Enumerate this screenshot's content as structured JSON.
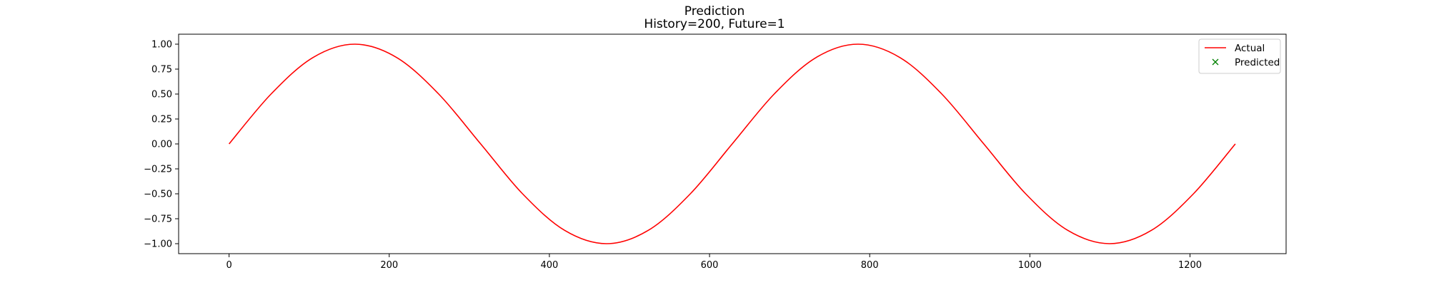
{
  "chart_data": {
    "type": "line",
    "title": "Prediction",
    "subtitle": "History=200, Future=1",
    "xlabel": "",
    "ylabel": "",
    "xlim": [
      -63,
      1320
    ],
    "ylim": [
      -1.1,
      1.1
    ],
    "xticks": [
      0,
      200,
      400,
      600,
      800,
      1000,
      1200
    ],
    "yticks": [
      1.0,
      0.75,
      0.5,
      0.25,
      0.0,
      -0.25,
      -0.5,
      -0.75,
      -1.0
    ],
    "ytick_labels": [
      "1.00",
      "0.75",
      "0.50",
      "0.25",
      "0.00",
      "−0.25",
      "−0.50",
      "−0.75",
      "−1.00"
    ],
    "grid": false,
    "legend_position": "top-right",
    "series": [
      {
        "name": "Actual",
        "kind": "line",
        "color": "#ff0000",
        "x": [
          0,
          52.4,
          104.7,
          157.1,
          209.4,
          261.8,
          314.2,
          366.5,
          418.9,
          471.2,
          523.6,
          576.0,
          628.3,
          680.7,
          733.0,
          785.4,
          837.8,
          890.1,
          942.5,
          994.8,
          1047.2,
          1099.6,
          1151.9,
          1204.3,
          1256.6
        ],
        "values": [
          0,
          0.5,
          0.866,
          1.0,
          0.866,
          0.5,
          0,
          -0.5,
          -0.866,
          -1.0,
          -0.866,
          -0.5,
          0,
          0.5,
          0.866,
          1.0,
          0.866,
          0.5,
          0,
          -0.5,
          -0.866,
          -1.0,
          -0.866,
          -0.5,
          0
        ]
      },
      {
        "name": "Predicted",
        "kind": "scatter",
        "marker": "x",
        "color": "#008000",
        "x": [],
        "values": []
      }
    ]
  }
}
